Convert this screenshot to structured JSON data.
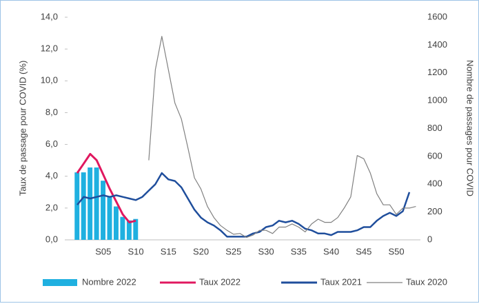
{
  "chart_data": {
    "type": "combo",
    "y_label": "Taux de passage pour COVID (%)",
    "y2_label": "Nombre de passages pour COVID",
    "categories": [
      null,
      null,
      null,
      null,
      "S05",
      null,
      null,
      null,
      null,
      "S10",
      null,
      null,
      null,
      null,
      "S15",
      null,
      null,
      null,
      null,
      "S20",
      null,
      null,
      null,
      null,
      "S25",
      null,
      null,
      null,
      null,
      "S30",
      null,
      null,
      null,
      null,
      "S35",
      null,
      null,
      null,
      null,
      "S40",
      null,
      null,
      null,
      null,
      "S45",
      null,
      null,
      null,
      null,
      "S50",
      null,
      null,
      null
    ],
    "ylim": [
      0,
      14
    ],
    "yticks": [
      {
        "value": 0,
        "label": "0,0"
      },
      {
        "value": 2,
        "label": "2,0"
      },
      {
        "value": 4,
        "label": "4,0"
      },
      {
        "value": 6,
        "label": "6,0"
      },
      {
        "value": 8,
        "label": "8,0"
      },
      {
        "value": 10,
        "label": "10,0"
      },
      {
        "value": 12,
        "label": "12,0"
      },
      {
        "value": 14,
        "label": "14,0"
      }
    ],
    "y2lim": [
      0,
      1600
    ],
    "y2ticks": [
      0,
      200,
      400,
      600,
      800,
      1000,
      1200,
      1400,
      1600
    ],
    "series": [
      {
        "name": "Nombre 2022",
        "type": "bar",
        "axis": "y2",
        "color": "#1fb0e0",
        "values": [
          485,
          485,
          520,
          520,
          425,
          310,
          240,
          165,
          140,
          150,
          null,
          null,
          null,
          null,
          null,
          null,
          null,
          null,
          null,
          null,
          null,
          null,
          null,
          null,
          null,
          null,
          null,
          null,
          null,
          null,
          null,
          null,
          null,
          null,
          null,
          null,
          null,
          null,
          null,
          null,
          null,
          null,
          null,
          null,
          null,
          null,
          null,
          null,
          null,
          null,
          null,
          null,
          null
        ]
      },
      {
        "name": "Taux 2022",
        "type": "line",
        "color": "#e0185f",
        "values": [
          4.2,
          4.8,
          5.4,
          5.0,
          4.1,
          3.2,
          2.4,
          1.6,
          1.1,
          1.2,
          null,
          null,
          null,
          null,
          null,
          null,
          null,
          null,
          null,
          null,
          null,
          null,
          null,
          null,
          null,
          null,
          null,
          null,
          null,
          null,
          null,
          null,
          null,
          null,
          null,
          null,
          null,
          null,
          null,
          null,
          null,
          null,
          null,
          null,
          null,
          null,
          null,
          null,
          null,
          null,
          null,
          null,
          null
        ]
      },
      {
        "name": "Taux 2021",
        "type": "line",
        "color": "#1f4e9c",
        "values": [
          2.2,
          2.7,
          2.6,
          2.7,
          2.8,
          2.7,
          2.8,
          2.7,
          2.6,
          2.5,
          2.7,
          3.1,
          3.5,
          4.2,
          3.8,
          3.7,
          3.3,
          2.6,
          1.9,
          1.4,
          1.1,
          0.9,
          0.6,
          0.2,
          0.2,
          0.2,
          0.2,
          0.4,
          0.5,
          0.8,
          0.9,
          1.2,
          1.1,
          1.2,
          1.0,
          0.7,
          0.6,
          0.4,
          0.4,
          0.3,
          0.5,
          0.5,
          0.5,
          0.6,
          0.8,
          0.8,
          1.2,
          1.5,
          1.7,
          1.5,
          1.8,
          3.0,
          null
        ]
      },
      {
        "name": "Taux 2020",
        "type": "line",
        "color": "#808080",
        "values": [
          null,
          null,
          null,
          null,
          null,
          null,
          null,
          null,
          null,
          null,
          null,
          5.0,
          10.7,
          12.8,
          10.7,
          8.6,
          7.6,
          5.8,
          3.9,
          3.2,
          2.1,
          1.4,
          0.9,
          0.6,
          0.35,
          0.4,
          0.15,
          0.3,
          0.6,
          0.6,
          0.4,
          0.8,
          0.8,
          1.0,
          0.8,
          0.5,
          1.0,
          1.3,
          1.1,
          1.1,
          1.4,
          2.0,
          2.7,
          5.3,
          5.1,
          4.2,
          2.9,
          2.2,
          2.2,
          1.6,
          2.0,
          2.0,
          2.1
        ]
      }
    ]
  }
}
